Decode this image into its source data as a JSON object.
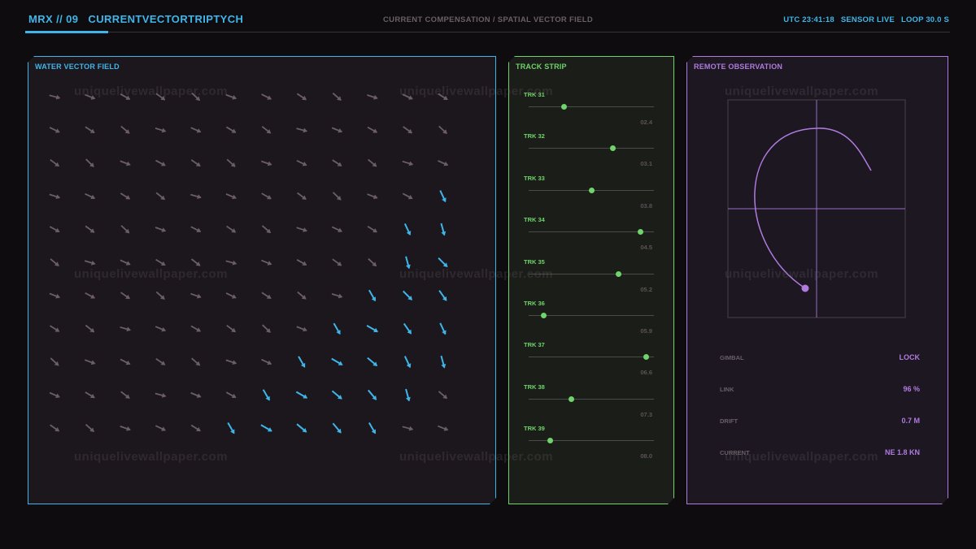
{
  "header": {
    "title_prefix": "MRX // 09",
    "title_main": "CURRENTVECTORTRIPTYCH",
    "subtitle": "CURRENT COMPENSATION / SPATIAL VECTOR FIELD",
    "utc": "UTC 23:41:18",
    "sensor": "SENSOR LIVE",
    "loop": "LOOP 30.0 S"
  },
  "colors": {
    "accent_blue": "#3fb6ea",
    "accent_green": "#6fd46a",
    "accent_purple": "#b07be0",
    "arrow_inactive": "#6b5e67"
  },
  "vector_panel": {
    "title": "WATER VECTOR FIELD"
  },
  "track_panel": {
    "title": "TRACK STRIP",
    "tracks": [
      {
        "label": "TRK 31",
        "value": "02.4",
        "position": 0.28
      },
      {
        "label": "TRK 32",
        "value": "03.1",
        "position": 0.67
      },
      {
        "label": "TRK 33",
        "value": "03.8",
        "position": 0.5
      },
      {
        "label": "TRK 34",
        "value": "04.5",
        "position": 0.89
      },
      {
        "label": "TRK 35",
        "value": "05.2",
        "position": 0.72
      },
      {
        "label": "TRK 36",
        "value": "05.9",
        "position": 0.12
      },
      {
        "label": "TRK 37",
        "value": "06.6",
        "position": 0.94
      },
      {
        "label": "TRK 38",
        "value": "07.3",
        "position": 0.34
      },
      {
        "label": "TRK 39",
        "value": "08.0",
        "position": 0.17
      }
    ]
  },
  "observation_panel": {
    "title": "REMOTE OBSERVATION",
    "readouts": [
      {
        "label": "GIMBAL",
        "value": "LOCK"
      },
      {
        "label": "LINK",
        "value": "96 %"
      },
      {
        "label": "DRIFT",
        "value": "0.7 M"
      },
      {
        "label": "CURRENT",
        "value": "NE 1.8 KN"
      }
    ]
  },
  "watermark": "uniquelivewallpaper.com"
}
